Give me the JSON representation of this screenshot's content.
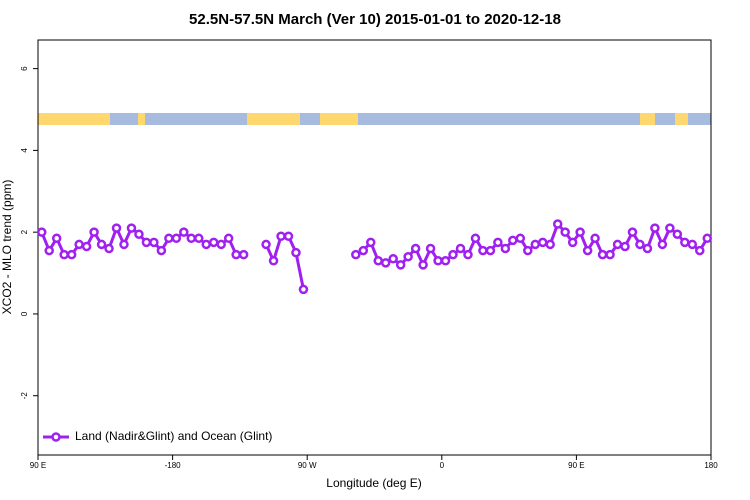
{
  "chart_data": {
    "type": "line",
    "title": "52.5N-57.5N March (Ver 10)   2015-01-01 to 2020-12-18",
    "x_label": "Longitude (deg E)",
    "y_label": "XCO2 - MLO trend (ppm)",
    "x": [
      -267.5,
      -262.5,
      -257.5,
      -252.5,
      -247.5,
      -242.5,
      -237.5,
      -232.5,
      -227.5,
      -222.5,
      -217.5,
      -212.5,
      -207.5,
      -202.5,
      -197.5,
      -192.5,
      -187.5,
      -182.5,
      -177.5,
      -172.5,
      -167.5,
      -162.5,
      -157.5,
      -152.5,
      -147.5,
      -142.5,
      -137.5,
      -132.5,
      -127.5,
      -122.5,
      -117.5,
      -112.5,
      -107.5,
      -102.5,
      -97.5,
      -92.5,
      -87.5,
      -82.5,
      -77.5,
      -72.5,
      -67.5,
      -62.5,
      -57.5,
      -52.5,
      -47.5,
      -42.5,
      -37.5,
      -32.5,
      -27.5,
      -22.5,
      -17.5,
      -12.5,
      -7.5,
      -2.5,
      2.5,
      7.5,
      12.5,
      17.5,
      22.5,
      27.5,
      32.5,
      37.5,
      42.5,
      47.5,
      52.5,
      57.5,
      62.5,
      67.5,
      72.5,
      77.5,
      82.5,
      87.5,
      92.5,
      97.5,
      102.5,
      107.5,
      112.5,
      117.5,
      122.5,
      127.5,
      132.5,
      137.5,
      142.5,
      147.5,
      152.5,
      157.5,
      162.5,
      167.5,
      172.5,
      177.5
    ],
    "series": [
      {
        "name": "Land (Nadir&Glint) and Ocean (Glint)",
        "color": "#a020f0",
        "values": [
          2.0,
          1.55,
          1.85,
          1.45,
          1.45,
          1.7,
          1.65,
          2.0,
          1.7,
          1.6,
          2.1,
          1.7,
          2.1,
          1.95,
          1.75,
          1.75,
          1.55,
          1.85,
          1.85,
          2.0,
          1.85,
          1.85,
          1.7,
          1.75,
          1.7,
          1.85,
          1.45,
          1.45,
          null,
          null,
          1.7,
          1.3,
          1.9,
          1.9,
          1.5,
          0.6,
          null,
          null,
          null,
          null,
          null,
          null,
          1.45,
          1.55,
          1.75,
          1.3,
          1.25,
          1.35,
          1.2,
          1.4,
          1.6,
          1.2,
          1.6,
          1.3,
          1.3,
          1.45,
          1.6,
          1.45,
          1.85,
          1.55,
          1.55,
          1.75,
          1.6,
          1.8,
          1.85,
          1.55,
          1.7,
          1.75,
          1.7,
          2.2,
          2.0,
          1.75,
          2.0,
          1.55,
          1.85,
          1.45,
          1.45,
          1.7,
          1.65,
          2.0,
          1.7,
          1.6,
          2.1,
          1.7,
          2.1,
          1.95,
          1.75,
          1.7,
          1.55,
          1.85
        ]
      }
    ],
    "xlim": [
      -270,
      180
    ],
    "xticks": [
      {
        "value": -270,
        "label": "90 E"
      },
      -180,
      {
        "value": -90,
        "label": "90 W"
      },
      0,
      {
        "value": 90,
        "label": "90 E"
      },
      180
    ],
    "ylim": [
      -3.45,
      6.7
    ],
    "yticks": [
      -2,
      0,
      2,
      4,
      6
    ],
    "legend": "bottom-left"
  }
}
